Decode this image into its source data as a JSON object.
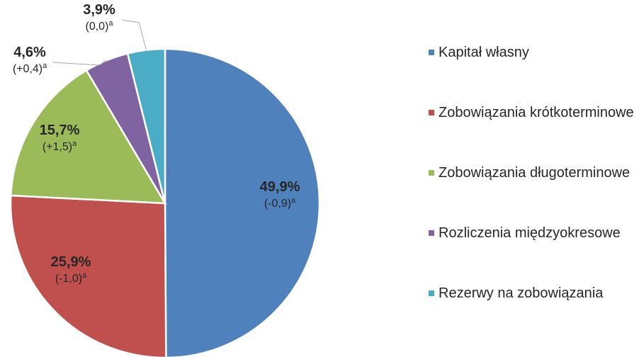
{
  "chart_data": {
    "type": "pie",
    "categories": [
      "Kapitał własny",
      "Zobowiązania krótkoterminowe",
      "Zobowiązania długoterminowe",
      "Rozliczenia międzyokresowe",
      "Rezerwy na zobowiązania"
    ],
    "values": [
      49.9,
      25.9,
      15.7,
      4.6,
      3.9
    ],
    "value_labels": [
      "49,9%",
      "25,9%",
      "15,7%",
      "4,6%",
      "3,9%"
    ],
    "change_labels": [
      "(-0,9)",
      "(-1,0)",
      "(+1,5)",
      "(+0,4)",
      "(0,0)"
    ],
    "note_marker": "a",
    "colors": [
      "#4f81bd",
      "#c0504d",
      "#9bbb59",
      "#8064a2",
      "#4bacc6"
    ],
    "legend": "right"
  }
}
